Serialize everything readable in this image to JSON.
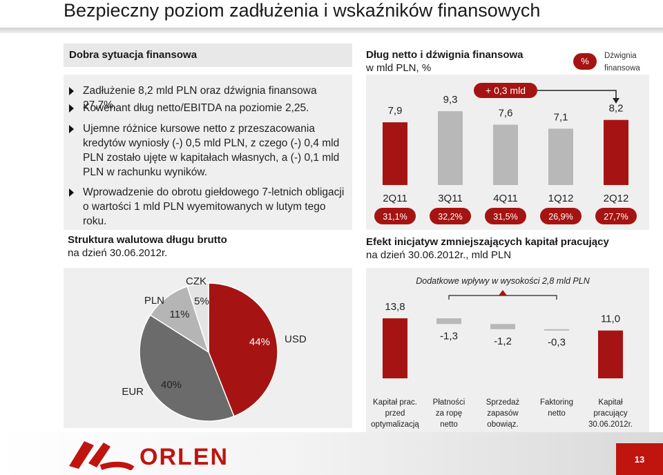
{
  "header": {
    "title": "Bezpieczny poziom zadłużenia i wskaźników finansowych"
  },
  "left_panel": {
    "heading": "Dobra sytuacja finansowa",
    "bullets": [
      "Zadłużenie 8,2 mld PLN oraz dźwignia finansowa 27,7%.",
      "Kowenant dług netto/EBITDA na poziomie 2,25.",
      "Ujemne różnice kursowe netto z przeszacowania kredytów wyniosły (-) 0,5 mld PLN, z czego (-) 0,4 mld PLN zostało ujęte w kapitałach własnych, a (-) 0,1 mld PLN w rachunku wyników.",
      "Wprowadzenie do obrotu giełdowego 7-letnich obligacji o wartości 1 mld PLN wyemitowanych w lutym tego roku."
    ]
  },
  "debt_chart": {
    "heading_bold": "Dług netto i dźwignia finansowa",
    "heading_sub": "w mld PLN, %",
    "legend_pct": "%",
    "legend_leverage": "Dźwignia finansowa",
    "annotation": "+ 0,3 mld"
  },
  "currency_chart": {
    "heading_bold": "Struktura walutowa długu brutto",
    "heading_sub": "na dzień 30.06.2012r."
  },
  "wc_chart": {
    "heading_bold": "Efekt inicjatyw zmniejszających kapitał pracujący",
    "heading_sub": "na dzień 30.06.2012r., mld PLN",
    "annotation": "Dodatkowe wpływy w wysokości 2,8 mld PLN"
  },
  "chart_data": [
    {
      "type": "bar",
      "categories": [
        "2Q11",
        "3Q11",
        "4Q11",
        "1Q12",
        "2Q12"
      ],
      "values": [
        7.9,
        9.3,
        7.6,
        7.1,
        8.2
      ],
      "value_labels": [
        "7,9",
        "9,3",
        "7,6",
        "7,1",
        "8,2"
      ],
      "leverage_labels": [
        "31,1%",
        "32,2%",
        "31,5%",
        "26,9%",
        "27,7%"
      ],
      "leverage": [
        31.1,
        32.2,
        31.5,
        26.9,
        27.7
      ],
      "colors": [
        "#a51412",
        "#b8b8b8",
        "#b8b8b8",
        "#b8b8b8",
        "#a51412"
      ],
      "title": "Dług netto i dźwignia finansowa"
    },
    {
      "type": "pie",
      "slices": [
        {
          "label": "USD",
          "value": 44,
          "value_label": "44%",
          "color": "#a51412"
        },
        {
          "label": "EUR",
          "value": 40,
          "value_label": "40%",
          "color": "#6b6b6b"
        },
        {
          "label": "PLN",
          "value": 11,
          "value_label": "11%",
          "color": "#b5b5b5"
        },
        {
          "label": "CZK",
          "value": 5,
          "value_label": "5%",
          "color": "#e4e4e4"
        }
      ],
      "title": "Struktura walutowa długu brutto"
    },
    {
      "type": "bar",
      "subtype": "waterfall",
      "categories": [
        "Kapitał prac. przed optymalizacją",
        "Płatności za ropę netto",
        "Sprzedaż zapasów obowiąz.",
        "Faktoring netto",
        "Kapitał pracujący 30.06.2012r."
      ],
      "values": [
        13.8,
        -1.3,
        -1.2,
        -0.3,
        11.0
      ],
      "value_labels": [
        "13,8",
        "-1,3",
        "-1,2",
        "-0,3",
        "11,0"
      ],
      "colors": [
        "#a51412",
        "#b8b8b8",
        "#b8b8b8",
        "#b8b8b8",
        "#a51412"
      ],
      "title": "Efekt inicjatyw zmniejszających kapitał pracujący"
    }
  ],
  "footer": {
    "logo_text": "ORLEN",
    "page_number": "13"
  }
}
